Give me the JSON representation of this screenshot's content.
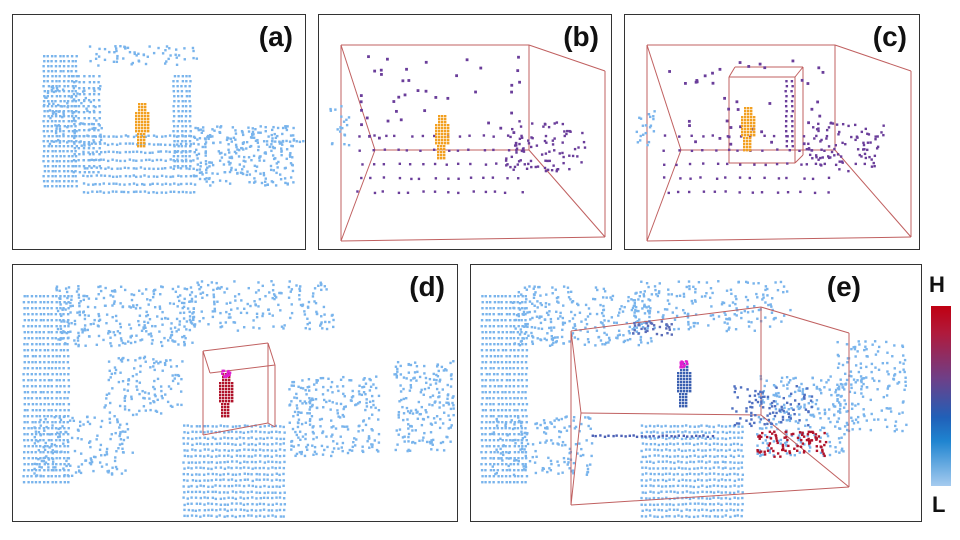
{
  "panels": [
    {
      "id": "a",
      "label": "(a)"
    },
    {
      "id": "b",
      "label": "(b)"
    },
    {
      "id": "c",
      "label": "(c)"
    },
    {
      "id": "d",
      "label": "(d)"
    },
    {
      "id": "e",
      "label": "(e)"
    }
  ],
  "colorbar": {
    "high_label": "H",
    "low_label": "L"
  },
  "colors": {
    "point_blue": "#79b4ec",
    "point_orange": "#f2a020",
    "point_purple": "#6a3d9a",
    "point_red": "#b0122a",
    "point_magenta": "#e01ecf",
    "box_line": "#c06060"
  }
}
